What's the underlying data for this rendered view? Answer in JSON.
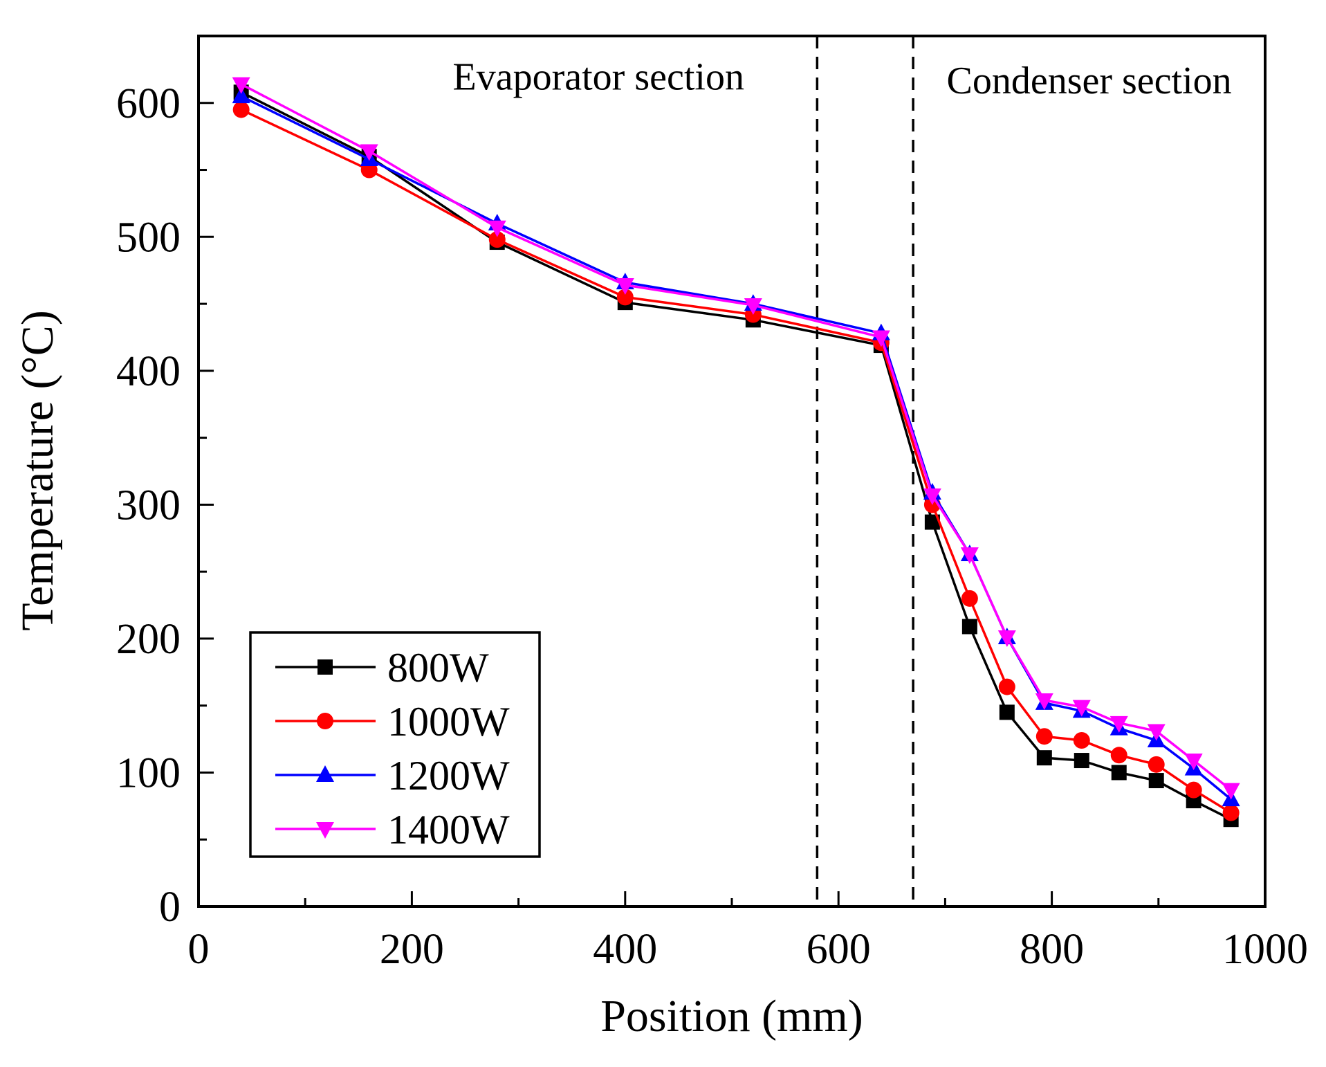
{
  "chart_data": {
    "type": "line",
    "title": "",
    "xlabel": "Position (mm)",
    "ylabel": "Temperature (°C)",
    "xlim": [
      0,
      1000
    ],
    "ylim": [
      0,
      650
    ],
    "x_ticks": [
      0,
      200,
      400,
      600,
      800,
      1000
    ],
    "x_tick_labels": [
      "0",
      "200",
      "400",
      "600",
      "800",
      "1000"
    ],
    "x_minor_ticks": [
      100,
      300,
      500,
      700,
      900
    ],
    "y_ticks": [
      0,
      100,
      200,
      300,
      400,
      500,
      600
    ],
    "y_tick_labels": [
      "0",
      "100",
      "200",
      "300",
      "400",
      "500",
      "600"
    ],
    "y_minor_ticks": [
      50,
      150,
      250,
      350,
      450,
      550
    ],
    "grid": false,
    "legend_position": "bottom-left",
    "dividers": [
      580,
      670
    ],
    "annotations": [
      {
        "text": "Evaporator section",
        "x": 375,
        "y": 610
      },
      {
        "text": "Condenser section",
        "x": 835,
        "y": 607
      }
    ],
    "series": [
      {
        "name": "800W",
        "color": "#000000",
        "marker": "square",
        "x": [
          40,
          160,
          280,
          400,
          520,
          640,
          688,
          723,
          758,
          793,
          828,
          863,
          898,
          933,
          968
        ],
        "y": [
          608,
          560,
          496,
          451,
          438,
          419,
          287,
          209,
          145,
          111,
          109,
          100,
          94,
          79,
          65
        ]
      },
      {
        "name": "1000W",
        "color": "#ff0000",
        "marker": "circle",
        "x": [
          40,
          160,
          280,
          400,
          520,
          640,
          688,
          723,
          758,
          793,
          828,
          863,
          898,
          933,
          968
        ],
        "y": [
          595,
          550,
          498,
          455,
          442,
          421,
          300,
          230,
          164,
          127,
          124,
          113,
          106,
          87,
          70
        ]
      },
      {
        "name": "1200W",
        "color": "#0000ff",
        "marker": "triangle-up",
        "x": [
          40,
          160,
          280,
          400,
          520,
          640,
          688,
          723,
          758,
          793,
          828,
          863,
          898,
          933,
          968
        ],
        "y": [
          605,
          558,
          510,
          466,
          450,
          428,
          309,
          263,
          201,
          152,
          146,
          133,
          124,
          103,
          80
        ]
      },
      {
        "name": "1400W",
        "color": "#ff00ff",
        "marker": "triangle-down",
        "x": [
          40,
          160,
          280,
          400,
          520,
          640,
          688,
          723,
          758,
          793,
          828,
          863,
          898,
          933,
          968
        ],
        "y": [
          614,
          564,
          507,
          464,
          449,
          425,
          307,
          263,
          201,
          154,
          149,
          137,
          131,
          109,
          87
        ]
      }
    ]
  }
}
